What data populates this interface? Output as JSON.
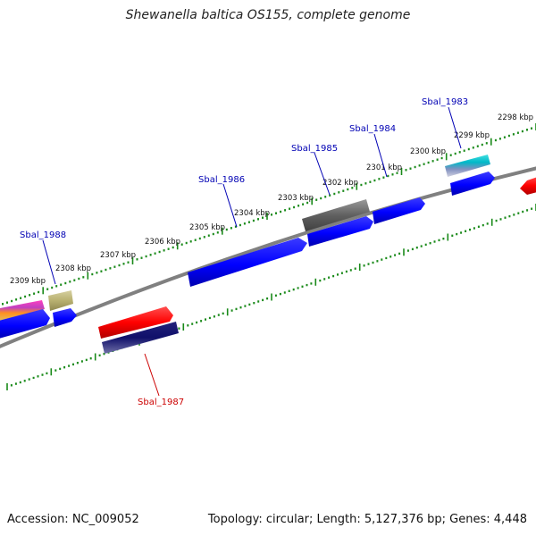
{
  "title": "Shewanella baltica OS155, complete genome",
  "footer": {
    "accession": "Accession: NC_009052",
    "stats": "Topology: circular; Length: 5,127,376 bp; Genes: 4,448"
  },
  "kbp_labels": [
    "2298 kbp",
    "2299 kbp",
    "2300 kbp",
    "2301 kbp",
    "2302 kbp",
    "2303 kbp",
    "2304 kbp",
    "2305 kbp",
    "2306 kbp",
    "2307 kbp",
    "2308 kbp",
    "2309 kbp"
  ],
  "gene_labels": {
    "g1983": "Sbal_1983",
    "g1984": "Sbal_1984",
    "g1985": "Sbal_1985",
    "g1986": "Sbal_1986",
    "g1987": "Sbal_1987",
    "g1988": "Sbal_1988"
  },
  "colors": {
    "label_blue": "#0000b4",
    "label_red": "#cc0000",
    "tick_green": "#1a8a1a",
    "backbone_gray": "#808080"
  }
}
